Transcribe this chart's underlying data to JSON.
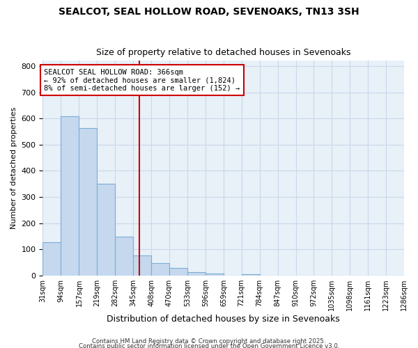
{
  "title1": "SEALCOT, SEAL HOLLOW ROAD, SEVENOAKS, TN13 3SH",
  "title2": "Size of property relative to detached houses in Sevenoaks",
  "xlabel": "Distribution of detached houses by size in Sevenoaks",
  "ylabel": "Number of detached properties",
  "bar_edges": [
    31,
    94,
    157,
    219,
    282,
    345,
    408,
    470,
    533,
    596,
    659,
    721,
    784,
    847,
    910,
    972,
    1035,
    1098,
    1161,
    1223,
    1286
  ],
  "bar_heights": [
    128,
    608,
    563,
    350,
    150,
    78,
    48,
    30,
    13,
    8,
    0,
    5,
    0,
    0,
    0,
    0,
    0,
    0,
    0,
    0
  ],
  "bar_color": "#c5d8ee",
  "bar_edge_color": "#7aaed6",
  "grid_color": "#c8d8ea",
  "bg_color": "#e8f0f8",
  "vline_x": 366,
  "vline_color": "#cc0000",
  "ylim": [
    0,
    820
  ],
  "yticks": [
    0,
    100,
    200,
    300,
    400,
    500,
    600,
    700,
    800
  ],
  "annotation_title": "SEALCOT SEAL HOLLOW ROAD: 366sqm",
  "annotation_line2": "← 92% of detached houses are smaller (1,824)",
  "annotation_line3": "8% of semi-detached houses are larger (152) →",
  "footer1": "Contains HM Land Registry data © Crown copyright and database right 2025.",
  "footer2": "Contains public sector information licensed under the Open Government Licence v3.0."
}
